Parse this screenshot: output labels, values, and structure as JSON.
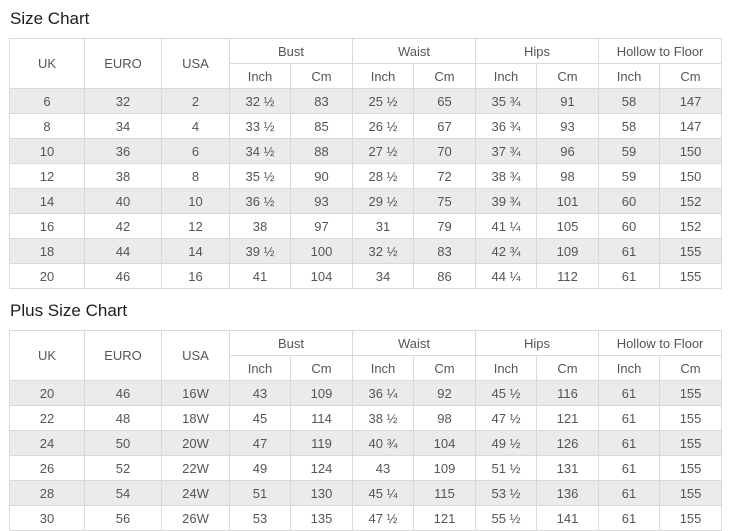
{
  "colors": {
    "stripe": "#ebebeb",
    "border": "#d9d9d9",
    "text": "#555555",
    "title": "#1d1d1d",
    "bg": "#ffffff"
  },
  "tables": [
    {
      "title": "Size Chart",
      "simple_columns": [
        "UK",
        "EURO",
        "USA"
      ],
      "group_columns": [
        "Bust",
        "Waist",
        "Hips",
        "Hollow to Floor"
      ],
      "subheaders": [
        "Inch",
        "Cm"
      ],
      "rows": [
        [
          "6",
          "32",
          "2",
          "32 ½",
          "83",
          "25 ½",
          "65",
          "35 ¾",
          "91",
          "58",
          "147"
        ],
        [
          "8",
          "34",
          "4",
          "33 ½",
          "85",
          "26 ½",
          "67",
          "36 ¾",
          "93",
          "58",
          "147"
        ],
        [
          "10",
          "36",
          "6",
          "34 ½",
          "88",
          "27 ½",
          "70",
          "37 ¾",
          "96",
          "59",
          "150"
        ],
        [
          "12",
          "38",
          "8",
          "35 ½",
          "90",
          "28 ½",
          "72",
          "38 ¾",
          "98",
          "59",
          "150"
        ],
        [
          "14",
          "40",
          "10",
          "36 ½",
          "93",
          "29 ½",
          "75",
          "39 ¾",
          "101",
          "60",
          "152"
        ],
        [
          "16",
          "42",
          "12",
          "38",
          "97",
          "31",
          "79",
          "41 ¼",
          "105",
          "60",
          "152"
        ],
        [
          "18",
          "44",
          "14",
          "39 ½",
          "100",
          "32 ½",
          "83",
          "42 ¾",
          "109",
          "61",
          "155"
        ],
        [
          "20",
          "46",
          "16",
          "41",
          "104",
          "34",
          "86",
          "44 ¼",
          "112",
          "61",
          "155"
        ]
      ]
    },
    {
      "title": "Plus Size Chart",
      "simple_columns": [
        "UK",
        "EURO",
        "USA"
      ],
      "group_columns": [
        "Bust",
        "Waist",
        "Hips",
        "Hollow to Floor"
      ],
      "subheaders": [
        "Inch",
        "Cm"
      ],
      "rows": [
        [
          "20",
          "46",
          "16W",
          "43",
          "109",
          "36 ¼",
          "92",
          "45 ½",
          "116",
          "61",
          "155"
        ],
        [
          "22",
          "48",
          "18W",
          "45",
          "114",
          "38 ½",
          "98",
          "47 ½",
          "121",
          "61",
          "155"
        ],
        [
          "24",
          "50",
          "20W",
          "47",
          "119",
          "40 ¾",
          "104",
          "49 ½",
          "126",
          "61",
          "155"
        ],
        [
          "26",
          "52",
          "22W",
          "49",
          "124",
          "43",
          "109",
          "51 ½",
          "131",
          "61",
          "155"
        ],
        [
          "28",
          "54",
          "24W",
          "51",
          "130",
          "45 ¼",
          "115",
          "53 ½",
          "136",
          "61",
          "155"
        ],
        [
          "30",
          "56",
          "26W",
          "53",
          "135",
          "47 ½",
          "121",
          "55 ½",
          "141",
          "61",
          "155"
        ]
      ]
    }
  ]
}
